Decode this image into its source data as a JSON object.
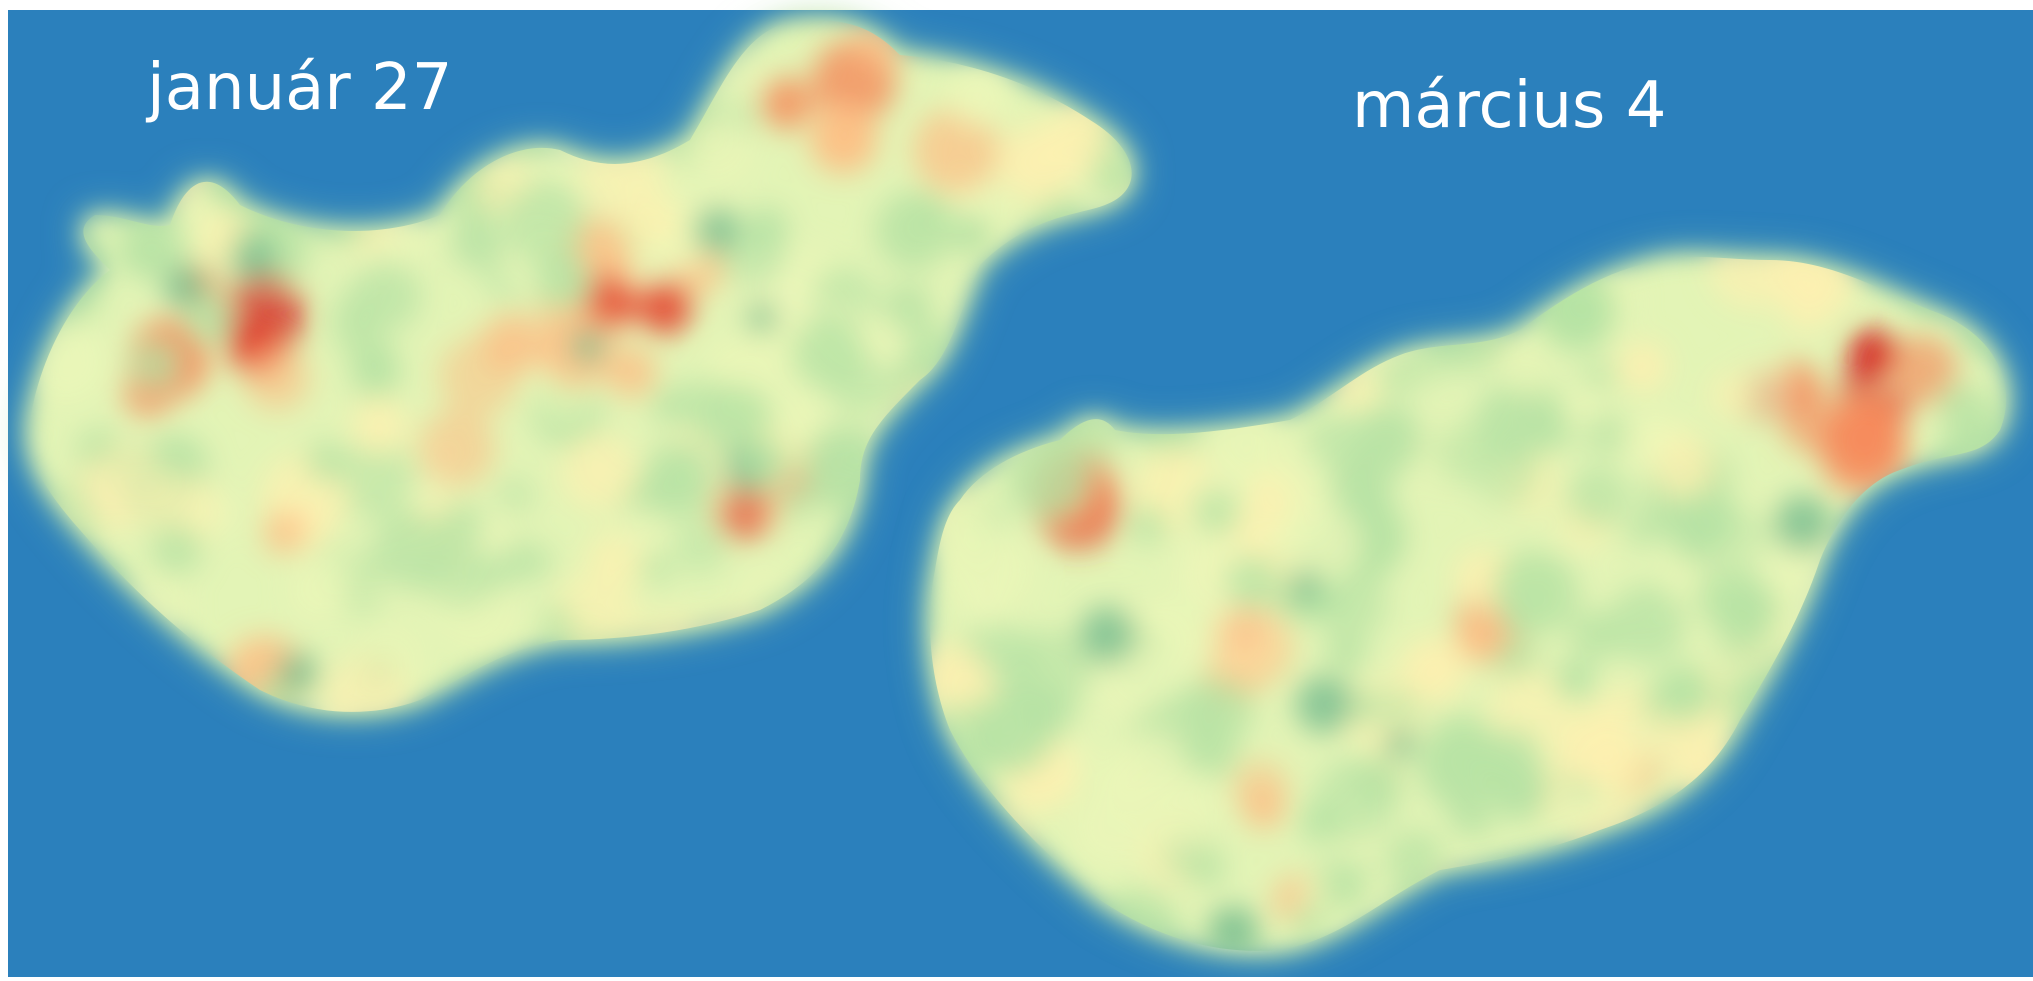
{
  "maps": [
    {
      "date_label": "január 27"
    },
    {
      "date_label": "március 4"
    }
  ],
  "colors": {
    "background": "#2b80bc",
    "margin": "#ffffff",
    "scale": [
      "#2b80bc",
      "#74bc8e",
      "#b6e2a4",
      "#ebf6b8",
      "#fdf0b0",
      "#fcc187",
      "#f58b5c",
      "#e44b33",
      "#d41c20"
    ]
  }
}
